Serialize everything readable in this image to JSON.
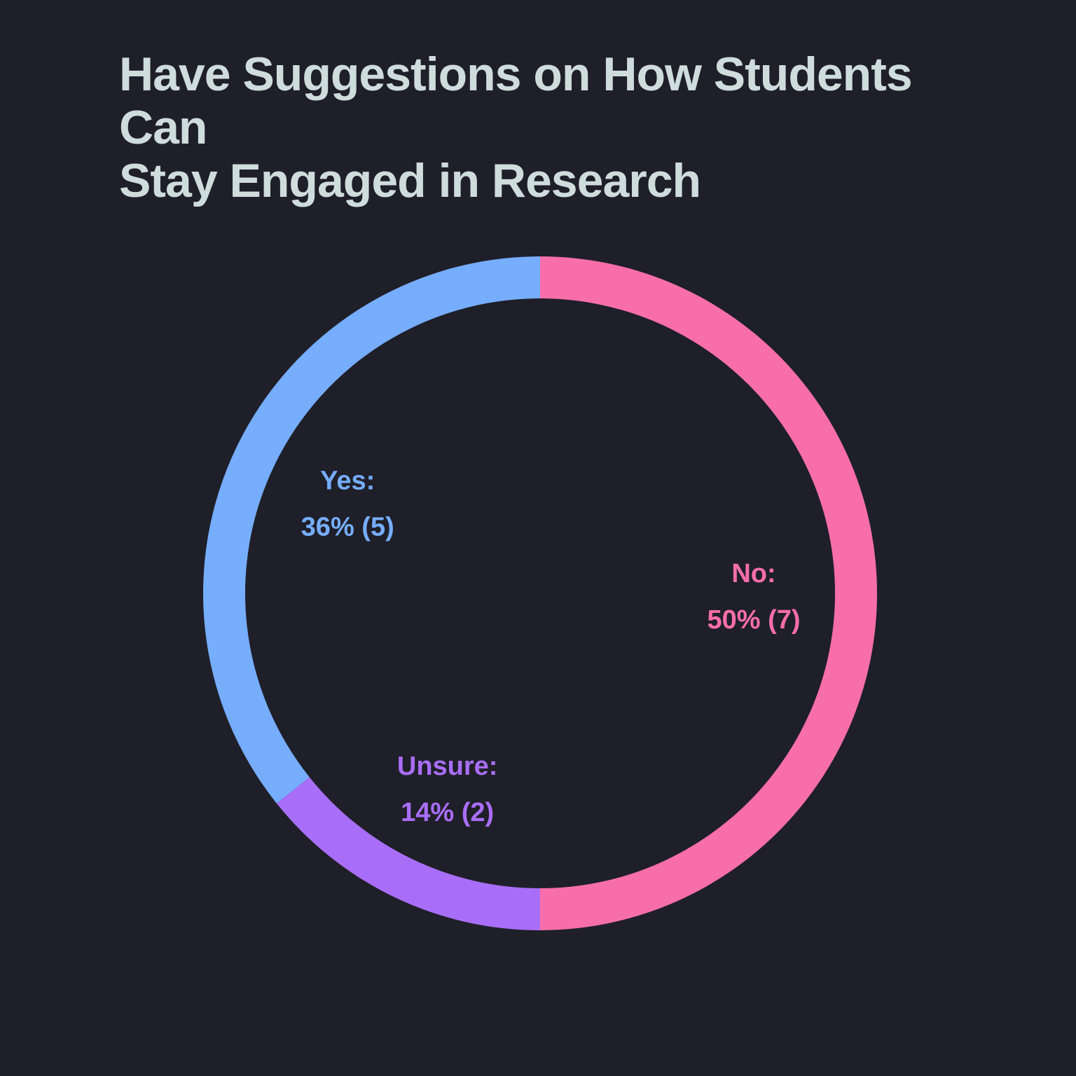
{
  "chart_data": {
    "type": "pie",
    "style": "donut",
    "title_lines": [
      "Have Suggestions on How Students Can",
      "Stay Engaged in Research"
    ],
    "slices": [
      {
        "name": "No",
        "label": "No:",
        "percent": 50,
        "count": 7,
        "value_text": "50% (7)",
        "color": "#f76eab"
      },
      {
        "name": "Unsure",
        "label": "Unsure:",
        "percent": 14,
        "count": 2,
        "value_text": "14% (2)",
        "color": "#a96ef8"
      },
      {
        "name": "Yes",
        "label": "Yes:",
        "percent": 36,
        "count": 5,
        "value_text": "36% (5)",
        "color": "#76adfd"
      }
    ],
    "start_angle": "top",
    "direction": "clockwise",
    "legend": "none",
    "labels_inside_ring": true
  },
  "colors": {
    "background": "#1f1f29",
    "title": "#cfdcdc"
  }
}
